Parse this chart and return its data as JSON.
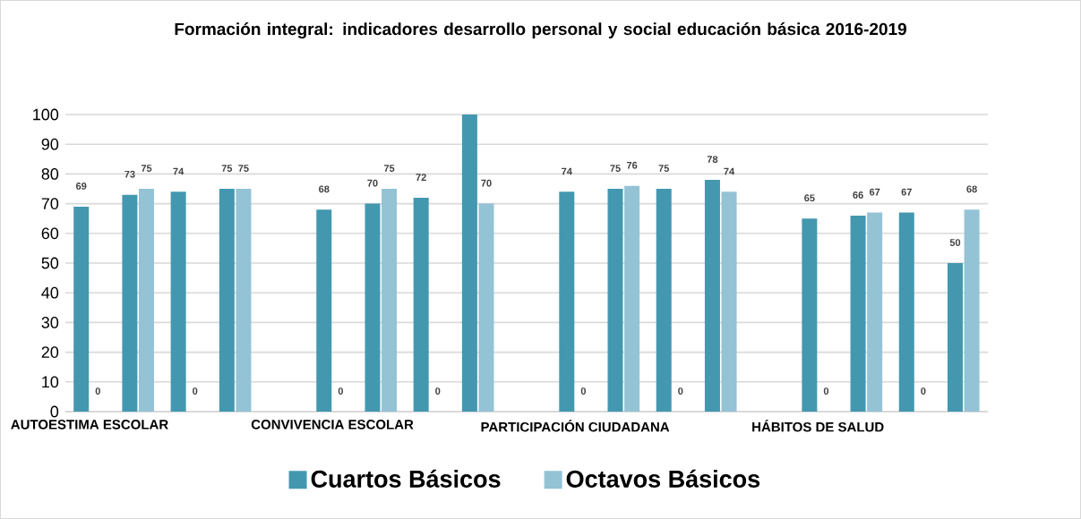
{
  "chart_data": {
    "type": "bar",
    "title": "Formación integral: indicadores desarrollo personal y social educación básica 2016-2019",
    "categories": [
      "AUTOESTIMA ESCOLAR",
      null,
      null,
      null,
      null,
      "CONVIVENCIA ESCOLAR",
      null,
      null,
      null,
      null,
      "PARTICIPACIÓN CIUDADANA",
      null,
      null,
      null,
      null,
      "HÁBITOS DE SALUD",
      null,
      null,
      null
    ],
    "series": [
      {
        "name": "Cuartos Básicos",
        "color": "#4398b0",
        "values": [
          69,
          73,
          74,
          75,
          null,
          68,
          70,
          72,
          100,
          null,
          74,
          75,
          75,
          78,
          null,
          65,
          66,
          67,
          50
        ],
        "value_labels": [
          "69",
          "73",
          "74",
          "75",
          null,
          "68",
          "70",
          "72",
          null,
          null,
          "74",
          "75",
          "75",
          "78",
          null,
          "65",
          "66",
          "67",
          "50"
        ]
      },
      {
        "name": "Octavos Básicos",
        "color": "#93c3d5",
        "values": [
          0,
          75,
          0,
          75,
          null,
          0,
          75,
          0,
          70,
          null,
          0,
          76,
          0,
          74,
          null,
          0,
          67,
          0,
          68
        ],
        "value_labels": [
          "0",
          "75",
          "0",
          "75",
          null,
          "0",
          "75",
          "0",
          "70",
          null,
          "0",
          "76",
          "0",
          "74",
          null,
          "0",
          "67",
          "0",
          "68"
        ]
      }
    ],
    "ylim": [
      0,
      100
    ],
    "yticks": [
      0,
      10,
      20,
      30,
      40,
      50,
      60,
      70,
      80,
      90,
      100
    ],
    "grid": "y",
    "legend": "bottom"
  }
}
